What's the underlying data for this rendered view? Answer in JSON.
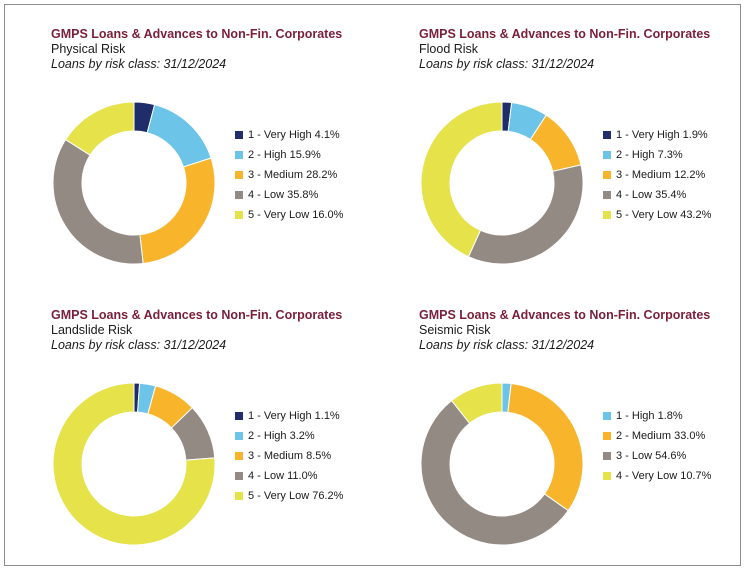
{
  "colors": {
    "very_high": "#1f2d6b",
    "high": "#6cc4e8",
    "medium": "#f8b52c",
    "low": "#948a84",
    "very_low": "#e6e24a"
  },
  "chart_data": [
    {
      "type": "pie",
      "title": "GMPS Loans & Advances to Non-Fin. Corporates",
      "subtitle": "Physical Risk",
      "date_label": "Loans by risk class: 31/12/2024",
      "categories": [
        "1 - Very High",
        "2 - High",
        "3 - Medium",
        "4 - Low",
        "5 - Very Low"
      ],
      "values": [
        4.1,
        15.9,
        28.2,
        35.8,
        16.0
      ],
      "colors": [
        "#1f2d6b",
        "#6cc4e8",
        "#f8b52c",
        "#948a84",
        "#e6e24a"
      ],
      "legend_labels": [
        "1 - Very High 4.1%",
        "2 - High 15.9%",
        "3 - Medium 28.2%",
        "4 - Low 35.8%",
        "5 - Very Low 16.0%"
      ],
      "legend_position": "right"
    },
    {
      "type": "pie",
      "title": "GMPS Loans & Advances to Non-Fin. Corporates",
      "subtitle": "Flood Risk",
      "date_label": "Loans by risk class: 31/12/2024",
      "categories": [
        "1 - Very High",
        "2 - High",
        "3 - Medium",
        "4 - Low",
        "5 - Very Low"
      ],
      "values": [
        1.9,
        7.3,
        12.2,
        35.4,
        43.2
      ],
      "colors": [
        "#1f2d6b",
        "#6cc4e8",
        "#f8b52c",
        "#948a84",
        "#e6e24a"
      ],
      "legend_labels": [
        "1 - Very High 1.9%",
        "2 - High 7.3%",
        "3 - Medium 12.2%",
        "4 - Low 35.4%",
        "5 - Very Low 43.2%"
      ],
      "legend_position": "right"
    },
    {
      "type": "pie",
      "title": "GMPS Loans & Advances to Non-Fin. Corporates",
      "subtitle": "Landslide Risk",
      "date_label": "Loans by risk class: 31/12/2024",
      "categories": [
        "1 - Very High",
        "2 - High",
        "3 - Medium",
        "4 - Low",
        "5 - Very Low"
      ],
      "values": [
        1.1,
        3.2,
        8.5,
        11.0,
        76.2
      ],
      "colors": [
        "#1f2d6b",
        "#6cc4e8",
        "#f8b52c",
        "#948a84",
        "#e6e24a"
      ],
      "legend_labels": [
        "1 - Very High 1.1%",
        "2 - High 3.2%",
        "3 - Medium 8.5%",
        "4 - Low 11.0%",
        "5 - Very Low 76.2%"
      ],
      "legend_position": "right"
    },
    {
      "type": "pie",
      "title": "GMPS Loans & Advances to Non-Fin. Corporates",
      "subtitle": "Seismic Risk",
      "date_label": "Loans by risk class: 31/12/2024",
      "categories": [
        "1 - High",
        "2 - Medium",
        "3 - Low",
        "4 - Very Low"
      ],
      "values": [
        1.8,
        33.0,
        54.6,
        10.7
      ],
      "colors": [
        "#6cc4e8",
        "#f8b52c",
        "#948a84",
        "#e6e24a"
      ],
      "legend_labels": [
        "1 - High 1.8%",
        "2 - Medium 33.0%",
        "3 - Low 54.6%",
        "4 - Very Low 10.7%"
      ],
      "legend_position": "right"
    }
  ]
}
